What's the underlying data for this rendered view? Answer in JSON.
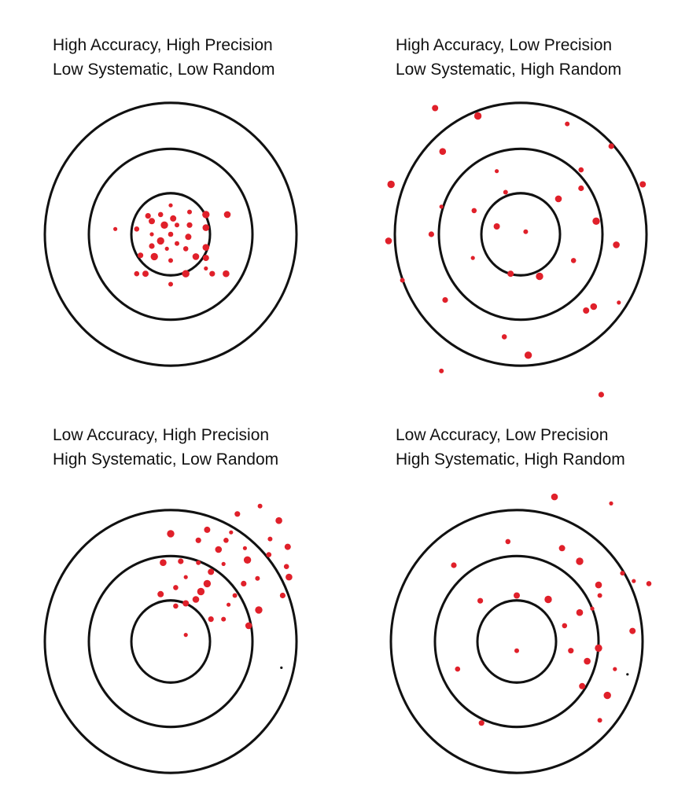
{
  "colors": {
    "ring": "#111111",
    "dot": "#e0202a",
    "stray": "#111111",
    "background": "#ffffff"
  },
  "panels": [
    {
      "line1": "High Accuracy, High Precision",
      "line2": "Low Systematic, Low Random",
      "dots": [
        [
          0.0,
          -0.22
        ],
        [
          -0.08,
          -0.15
        ],
        [
          0.02,
          -0.12
        ],
        [
          0.28,
          -0.15
        ],
        [
          0.15,
          -0.17
        ],
        [
          -0.18,
          -0.14
        ],
        [
          0.45,
          -0.15
        ],
        [
          -0.44,
          -0.04
        ],
        [
          -0.27,
          -0.04
        ],
        [
          -0.15,
          -0.1
        ],
        [
          -0.05,
          -0.07
        ],
        [
          0.05,
          -0.07
        ],
        [
          0.15,
          -0.07
        ],
        [
          0.28,
          -0.05
        ],
        [
          -0.15,
          0.0
        ],
        [
          0.0,
          0.0
        ],
        [
          0.14,
          0.02
        ],
        [
          -0.08,
          0.05
        ],
        [
          0.05,
          0.07
        ],
        [
          -0.15,
          0.09
        ],
        [
          0.28,
          0.1
        ],
        [
          -0.03,
          0.11
        ],
        [
          0.12,
          0.11
        ],
        [
          0.28,
          0.18
        ],
        [
          -0.13,
          0.17
        ],
        [
          0.0,
          0.2
        ],
        [
          -0.24,
          0.16
        ],
        [
          0.2,
          0.17
        ],
        [
          0.28,
          0.26
        ],
        [
          -0.27,
          0.3
        ],
        [
          -0.2,
          0.3
        ],
        [
          0.12,
          0.3
        ],
        [
          0.0,
          0.38
        ],
        [
          0.33,
          0.3
        ],
        [
          0.44,
          0.3
        ]
      ],
      "strays": []
    },
    {
      "line1": "High Accuracy, Low Precision",
      "line2": "Low Systematic, High Random",
      "dots": [
        [
          -0.68,
          -0.96
        ],
        [
          -0.34,
          -0.9
        ],
        [
          0.37,
          -0.84
        ],
        [
          0.72,
          -0.67
        ],
        [
          -0.62,
          -0.63
        ],
        [
          -0.19,
          -0.48
        ],
        [
          0.48,
          -0.49
        ],
        [
          0.97,
          -0.38
        ],
        [
          -1.03,
          -0.38
        ],
        [
          -0.12,
          -0.32
        ],
        [
          0.48,
          -0.35
        ],
        [
          0.3,
          -0.27
        ],
        [
          -0.63,
          -0.21
        ],
        [
          -0.37,
          -0.18
        ],
        [
          -0.19,
          -0.06
        ],
        [
          0.6,
          -0.1
        ],
        [
          0.04,
          -0.02
        ],
        [
          -0.71,
          0.0
        ],
        [
          0.76,
          0.08
        ],
        [
          -0.38,
          0.18
        ],
        [
          0.42,
          0.2
        ],
        [
          -0.08,
          0.3
        ],
        [
          0.15,
          0.32
        ],
        [
          -0.94,
          0.35
        ],
        [
          -0.6,
          0.5
        ],
        [
          0.58,
          0.55
        ],
        [
          0.78,
          0.52
        ],
        [
          -0.13,
          0.78
        ],
        [
          0.52,
          0.58
        ],
        [
          0.06,
          0.92
        ],
        [
          -0.63,
          1.04
        ],
        [
          0.64,
          1.22
        ],
        [
          -1.05,
          0.05
        ]
      ],
      "strays": []
    },
    {
      "line1": "Low Accuracy, High Precision",
      "line2": "High Systematic, Low Random",
      "dots": [
        [
          0.71,
          -1.03
        ],
        [
          0.53,
          -0.97
        ],
        [
          0.86,
          -0.92
        ],
        [
          0.48,
          -0.83
        ],
        [
          0.44,
          -0.77
        ],
        [
          0.29,
          -0.85
        ],
        [
          0.0,
          -0.82
        ],
        [
          0.79,
          -0.78
        ],
        [
          0.22,
          -0.77
        ],
        [
          0.38,
          -0.7
        ],
        [
          0.59,
          -0.71
        ],
        [
          0.78,
          -0.66
        ],
        [
          0.93,
          -0.72
        ],
        [
          0.61,
          -0.62
        ],
        [
          0.22,
          -0.6
        ],
        [
          0.08,
          -0.61
        ],
        [
          -0.06,
          -0.6
        ],
        [
          0.42,
          -0.59
        ],
        [
          0.92,
          -0.57
        ],
        [
          0.32,
          -0.53
        ],
        [
          0.29,
          -0.44
        ],
        [
          0.69,
          -0.48
        ],
        [
          0.58,
          -0.44
        ],
        [
          0.94,
          -0.49
        ],
        [
          0.12,
          -0.49
        ],
        [
          0.04,
          -0.41
        ],
        [
          -0.08,
          -0.36
        ],
        [
          0.24,
          -0.38
        ],
        [
          0.51,
          -0.35
        ],
        [
          0.89,
          -0.35
        ],
        [
          0.2,
          -0.32
        ],
        [
          0.46,
          -0.28
        ],
        [
          0.04,
          -0.27
        ],
        [
          0.12,
          -0.29
        ],
        [
          0.7,
          -0.24
        ],
        [
          0.42,
          -0.17
        ],
        [
          0.32,
          -0.17
        ],
        [
          0.62,
          -0.12
        ],
        [
          0.12,
          -0.05
        ]
      ],
      "strays": [
        [
          0.88,
          0.2
        ]
      ]
    },
    {
      "line1": "Low Accuracy, Low Precision",
      "line2": "High Systematic, High Random",
      "dots": [
        [
          0.3,
          -1.1
        ],
        [
          0.75,
          -1.05
        ],
        [
          -0.07,
          -0.76
        ],
        [
          0.36,
          -0.71
        ],
        [
          0.5,
          -0.61
        ],
        [
          0.84,
          -0.52
        ],
        [
          -0.5,
          -0.58
        ],
        [
          0.65,
          -0.43
        ],
        [
          0.93,
          -0.46
        ],
        [
          1.05,
          -0.44
        ],
        [
          0.0,
          -0.35
        ],
        [
          0.25,
          -0.32
        ],
        [
          0.66,
          -0.35
        ],
        [
          -0.29,
          -0.31
        ],
        [
          0.5,
          -0.22
        ],
        [
          0.6,
          -0.25
        ],
        [
          0.38,
          -0.12
        ],
        [
          0.92,
          -0.08
        ],
        [
          0.65,
          0.05
        ],
        [
          0.0,
          0.07
        ],
        [
          0.43,
          0.07
        ],
        [
          0.56,
          0.15
        ],
        [
          0.78,
          0.21
        ],
        [
          -0.47,
          0.21
        ],
        [
          0.52,
          0.34
        ],
        [
          0.72,
          0.41
        ],
        [
          0.66,
          0.6
        ],
        [
          -0.28,
          0.62
        ]
      ],
      "strays": [
        [
          0.88,
          0.25
        ]
      ]
    }
  ]
}
